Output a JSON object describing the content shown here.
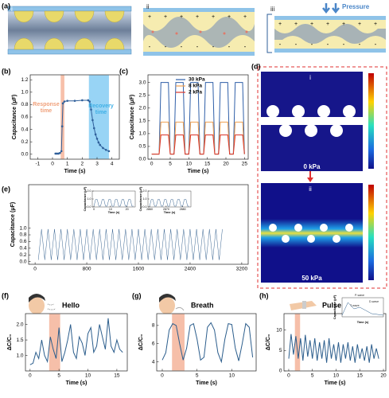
{
  "figure": {
    "panel_labels": [
      "(a)",
      "(b)",
      "(c)",
      "(d)",
      "(e)",
      "(f)",
      "(g)",
      "(h)"
    ],
    "a_labels": [
      "i",
      "ii",
      "iii"
    ],
    "pressure": "Pressure",
    "signs": {
      "plus": "+",
      "minus": "-"
    },
    "d_labels": [
      "i",
      "ii"
    ],
    "d_pressures": [
      "0 kPa",
      "50 kPa"
    ]
  },
  "chart_data": [
    {
      "type": "line",
      "xlabel": "Time (s)",
      "ylabel": "Capacitance (μF)",
      "xlim": [
        -1.5,
        4.5
      ],
      "ylim": [
        -0.08,
        1.28
      ],
      "xticks": [
        -1,
        0,
        1,
        2,
        3,
        4
      ],
      "yticks": [
        {
          "value": 0,
          "label": "0.0"
        },
        {
          "value": 0.2,
          "label": "0.2"
        },
        {
          "value": 0.4,
          "label": "0.4"
        },
        {
          "value": 0.6,
          "label": "0.6"
        },
        {
          "value": 0.8,
          "label": "0.8"
        },
        {
          "value": 1,
          "label": "1.0"
        },
        {
          "value": 1.2,
          "label": "1.2"
        }
      ],
      "x": [
        0.2,
        0.3,
        0.4,
        0.5,
        0.6,
        0.65,
        0.7,
        0.8,
        1.0,
        1.5,
        2.0,
        2.4,
        2.5,
        2.6,
        2.7,
        2.8,
        2.9,
        3.0,
        3.1,
        3.2,
        3.4,
        3.6,
        3.8
      ],
      "series": [
        {
          "color": "#2f5f9a",
          "values": [
            0.01,
            0.01,
            0.01,
            0.02,
            0.05,
            0.45,
            0.82,
            0.85,
            0.86,
            0.86,
            0.87,
            0.87,
            0.85,
            0.72,
            0.55,
            0.42,
            0.32,
            0.25,
            0.19,
            0.15,
            0.1,
            0.07,
            0.05
          ]
        }
      ],
      "markers": true,
      "highlights": [
        {
          "from": 0.55,
          "to": 0.8,
          "color": "#f6b59b"
        },
        {
          "from": 2.45,
          "to": 3.8,
          "color": "#86cdf3"
        }
      ],
      "annotations": [
        "Response time",
        "Recovery time"
      ],
      "annotation_colors": [
        "#f0a07a",
        "#3fb0e6"
      ]
    },
    {
      "type": "line",
      "xlabel": "Time (s)",
      "ylabel": "Capacitance (μF)",
      "xlim": [
        -1,
        26
      ],
      "ylim": [
        0,
        3.3
      ],
      "xticks": [
        0,
        5,
        10,
        15,
        20,
        25
      ],
      "yticks": [
        {
          "value": 0,
          "label": "0.0"
        },
        0.5,
        {
          "value": 1,
          "label": "1.0"
        },
        1.5,
        {
          "value": 2,
          "label": "2.0"
        },
        2.5,
        {
          "value": 3,
          "label": "3.0"
        }
      ],
      "x": [
        0,
        0.5,
        1,
        1.5,
        2,
        2.5,
        3,
        3.5,
        4,
        4.5,
        5,
        5.5,
        6,
        6.5,
        7,
        7.5,
        8,
        8.5,
        9,
        9.5,
        10,
        10.5,
        11,
        11.5,
        12,
        12.5,
        13,
        13.5,
        14,
        14.5,
        15,
        15.5,
        16,
        16.5,
        17,
        17.5,
        18,
        18.5,
        19,
        19.5,
        20,
        20.5,
        21,
        21.5,
        22,
        22.5,
        23,
        23.5,
        24,
        24.5,
        25
      ],
      "legend": "upper center",
      "series": [
        {
          "name": "30 kPa",
          "color": "#2f5fa8",
          "values": [
            0.2,
            0.2,
            0.2,
            0.2,
            0.2,
            3,
            3,
            3,
            3,
            3,
            0.2,
            0.2,
            0.2,
            3,
            3,
            3,
            3,
            3,
            0.2,
            0.2,
            0.2,
            3,
            3,
            3,
            3,
            3,
            0.2,
            0.2,
            0.2,
            3,
            3,
            3,
            3,
            3,
            0.2,
            0.2,
            0.2,
            3,
            3,
            3,
            3,
            3,
            0.2,
            0.2,
            0.2,
            3,
            3,
            3,
            3,
            3,
            0.2
          ]
        },
        {
          "name": "8 kPa",
          "color": "#f0a050",
          "values": [
            0.2,
            0.2,
            0.2,
            0.2,
            0.2,
            1.45,
            1.45,
            1.45,
            1.45,
            1.45,
            0.2,
            0.2,
            0.2,
            1.45,
            1.45,
            1.45,
            1.45,
            1.45,
            0.2,
            0.2,
            0.2,
            1.45,
            1.45,
            1.45,
            1.45,
            1.45,
            0.2,
            0.2,
            0.2,
            1.45,
            1.45,
            1.45,
            1.45,
            1.45,
            0.2,
            0.2,
            0.2,
            1.45,
            1.45,
            1.45,
            1.45,
            1.45,
            0.2,
            0.2,
            0.2,
            1.45,
            1.45,
            1.45,
            1.45,
            1.45,
            0.2
          ]
        },
        {
          "name": "2 kPa",
          "color": "#d9362b",
          "values": [
            0.2,
            0.2,
            0.2,
            0.2,
            0.2,
            0.95,
            0.95,
            0.95,
            0.95,
            0.95,
            0.2,
            0.2,
            0.2,
            0.95,
            0.95,
            0.95,
            0.95,
            0.95,
            0.2,
            0.2,
            0.2,
            0.95,
            0.95,
            0.95,
            0.95,
            0.95,
            0.2,
            0.2,
            0.2,
            0.95,
            0.95,
            0.95,
            0.95,
            0.95,
            0.2,
            0.2,
            0.2,
            0.95,
            0.95,
            0.95,
            0.95,
            0.95,
            0.2,
            0.2,
            0.2,
            0.95,
            0.95,
            0.95,
            0.95,
            0.95,
            0.2
          ]
        }
      ]
    },
    {
      "type": "line",
      "ylabel": "Capacitance (μF)",
      "xlim": [
        -100,
        3300
      ],
      "ylim": [
        -0.08,
        2.3
      ],
      "xticks": [
        0,
        800,
        1600,
        2400,
        3200
      ],
      "yticks": [
        {
          "value": 0,
          "label": "0.0"
        },
        {
          "value": 0.2,
          "label": "0.2"
        },
        {
          "value": 0.4,
          "label": "0.4"
        },
        {
          "value": 0.6,
          "label": "0.6"
        },
        {
          "value": 0.8,
          "label": "0.8"
        },
        {
          "value": 1,
          "label": "1.0"
        }
      ],
      "x": [
        50,
        100,
        150,
        200,
        250,
        300,
        350,
        400,
        450,
        500,
        550,
        600,
        650,
        700,
        750,
        800,
        850,
        900,
        950,
        1000,
        1050,
        1100,
        1150,
        1200,
        1250,
        1300,
        1350,
        1400,
        1450,
        1500,
        1550,
        1600,
        1650,
        1700,
        1750,
        1800,
        1850,
        1900,
        1950,
        2000,
        2050,
        2100,
        2150,
        2200,
        2250,
        2300,
        2350,
        2400,
        2450,
        2500,
        2550,
        2600,
        2650,
        2700,
        2750,
        2800,
        2850,
        2900
      ],
      "series": [
        {
          "color": "#3a6592",
          "values": [
            0.05,
            0.97,
            0.05,
            0.97,
            0.05,
            0.97,
            0.05,
            0.97,
            0.05,
            0.97,
            0.05,
            0.97,
            0.05,
            0.97,
            0.05,
            0.97,
            0.05,
            0.97,
            0.05,
            0.97,
            0.05,
            0.97,
            0.05,
            0.97,
            0.05,
            0.97,
            0.05,
            0.97,
            0.05,
            0.97,
            0.05,
            0.97,
            0.05,
            0.97,
            0.05,
            0.97,
            0.05,
            0.97,
            0.05,
            0.97,
            0.05,
            0.97,
            0.05,
            0.97,
            0.05,
            0.97,
            0.05,
            0.97,
            0.05,
            0.97,
            0.05,
            0.97,
            0.05,
            0.97,
            0.05,
            0.97,
            0.05,
            0.97
          ]
        }
      ]
    },
    {
      "type": "line",
      "xlabel": "Time (s)",
      "ylabel": "Capacitance (μF)",
      "xlim": [
        -1,
        25
      ],
      "ylim": [
        0,
        2
      ],
      "xticks": [
        0,
        10,
        20
      ],
      "yticks": [
        {
          "value": 0,
          "label": "0.0"
        },
        {
          "value": 1,
          "label": "1.0"
        },
        {
          "value": 2,
          "label": "2.0"
        }
      ],
      "x": [
        0,
        1,
        2,
        3,
        4,
        5,
        6,
        7,
        8,
        9,
        10,
        11,
        12,
        13,
        14,
        15,
        16,
        17,
        18,
        19,
        20,
        21,
        22,
        23,
        24
      ],
      "series": [
        {
          "color": "#3a6592",
          "values": [
            0.1,
            0.95,
            0.95,
            0.1,
            0.1,
            0.95,
            0.95,
            0.1,
            0.1,
            0.95,
            0.95,
            0.1,
            0.1,
            0.95,
            0.95,
            0.1,
            0.1,
            0.95,
            0.95,
            0.1,
            0.1,
            0.95,
            0.95,
            0.1,
            0.1
          ]
        }
      ]
    },
    {
      "type": "line",
      "xlabel": "Time (s)",
      "ylabel": "Capacitance (μF)",
      "xlim": [
        2859,
        2885
      ],
      "ylim": [
        0,
        2
      ],
      "xticks": [
        2860,
        2870,
        2880
      ],
      "yticks": [
        {
          "value": 0,
          "label": "0.0"
        },
        {
          "value": 1,
          "label": "1.0"
        },
        {
          "value": 2,
          "label": "2.0"
        }
      ],
      "x": [
        2860,
        2861,
        2862,
        2863,
        2864,
        2865,
        2866,
        2867,
        2868,
        2869,
        2870,
        2871,
        2872,
        2873,
        2874,
        2875,
        2876,
        2877,
        2878,
        2879,
        2880,
        2881,
        2882,
        2883,
        2884
      ],
      "series": [
        {
          "color": "#3a6592",
          "values": [
            0.1,
            0.95,
            0.95,
            0.1,
            0.1,
            0.95,
            0.95,
            0.1,
            0.1,
            0.95,
            0.95,
            0.1,
            0.1,
            0.95,
            0.95,
            0.1,
            0.1,
            0.95,
            0.95,
            0.1,
            0.1,
            0.95,
            0.95,
            0.1,
            0.1
          ]
        }
      ]
    },
    {
      "type": "line",
      "title": "Hello",
      "xlabel": "Time (s)",
      "ylabel": "ΔC/C₀",
      "xlim": [
        -0.8,
        16.8
      ],
      "ylim": [
        0.5,
        2.35
      ],
      "xticks": [
        0,
        5,
        10,
        15
      ],
      "yticks": [
        {
          "value": 1,
          "label": "1.0"
        },
        1.5,
        {
          "value": 2,
          "label": "2.0"
        }
      ],
      "x": [
        0,
        0.5,
        1,
        1.5,
        2,
        2.5,
        3,
        3.5,
        4,
        4.5,
        5,
        5.5,
        6,
        6.5,
        7,
        7.5,
        8,
        8.5,
        9,
        9.5,
        10,
        10.5,
        11,
        11.5,
        12,
        12.5,
        13,
        13.5,
        14,
        14.5,
        15,
        15.5,
        16
      ],
      "highlights": [
        {
          "from": 3.3,
          "to": 5.2,
          "color": "#f4b49a"
        }
      ],
      "series": [
        {
          "color": "#2b5d8c",
          "values": [
            0.7,
            0.75,
            1.1,
            0.9,
            1.5,
            1.0,
            0.8,
            1.6,
            1.2,
            0.9,
            1.9,
            0.8,
            1.1,
            1.5,
            2.0,
            1.1,
            0.9,
            1.6,
            1.4,
            1.0,
            1.7,
            1.9,
            1.1,
            1.3,
            2.0,
            1.6,
            1.2,
            2.2,
            1.3,
            1.1,
            1.5,
            1.2,
            1.1
          ]
        }
      ]
    },
    {
      "type": "line",
      "title": "Breath",
      "xlabel": "Time (s)",
      "ylabel": "ΔC/C₀",
      "xlim": [
        -0.8,
        13.5
      ],
      "ylim": [
        3,
        9.3
      ],
      "xticks": [
        0,
        5,
        10
      ],
      "yticks": [
        4,
        6,
        8
      ],
      "x": [
        0,
        0.5,
        1,
        1.5,
        2,
        2.5,
        3,
        3.5,
        4,
        4.5,
        5,
        5.5,
        6,
        6.5,
        7,
        7.5,
        8,
        8.5,
        9,
        9.5,
        10,
        10.5,
        11,
        11.5,
        12,
        12.5,
        13
      ],
      "highlights": [
        {
          "from": 1.4,
          "to": 3.2,
          "color": "#f4b49a"
        }
      ],
      "series": [
        {
          "color": "#2b5d8c",
          "values": [
            4.2,
            5,
            7.5,
            8.2,
            8.0,
            6,
            4.2,
            5.5,
            8.0,
            8.2,
            6.5,
            4.2,
            4.5,
            7.8,
            8.3,
            7.5,
            5,
            4.0,
            6.5,
            8.2,
            8.1,
            5.5,
            4.1,
            6,
            8.2,
            7.8,
            4.5
          ]
        }
      ]
    },
    {
      "type": "line",
      "title": "Pulse",
      "xlabel": "Time (s)",
      "ylabel": "ΔC/C₀",
      "xlim": [
        -1,
        20.5
      ],
      "ylim": [
        0,
        14
      ],
      "xticks": [
        0,
        5,
        10,
        15,
        20
      ],
      "yticks": [
        0,
        5,
        10
      ],
      "x": [
        0,
        0.5,
        1,
        1.5,
        2,
        2.5,
        3,
        3.5,
        4,
        4.5,
        5,
        5.5,
        6,
        6.5,
        7,
        7.5,
        8,
        8.5,
        9,
        9.5,
        10,
        10.5,
        11,
        11.5,
        12,
        12.5,
        13,
        13.5,
        14,
        14.5,
        15,
        15.5,
        16,
        16.5,
        17,
        17.5,
        18,
        18.5,
        19
      ],
      "highlights": [
        {
          "from": 1.3,
          "to": 2.4,
          "color": "#f4b49a"
        }
      ],
      "series": [
        {
          "color": "#2b5d8c",
          "values": [
            3,
            9,
            4,
            8.5,
            3,
            8,
            2.5,
            8.8,
            3.5,
            7.5,
            3,
            8,
            2.5,
            7,
            3,
            7.5,
            2,
            8,
            3,
            6.5,
            2.5,
            7,
            2,
            6.5,
            3,
            7,
            2.5,
            6,
            2,
            6.5,
            3,
            5.5,
            2.5,
            6,
            2,
            6.5,
            3,
            5.5,
            3
          ]
        }
      ]
    },
    {
      "type": "line",
      "xlabel": "Time (s)",
      "ylabel": "Capacitance (pF)",
      "xlim": [
        0,
        1.4
      ],
      "ylim": [
        0,
        1.2
      ],
      "x": [
        0,
        0.2,
        0.4,
        0.6,
        0.8,
        1.0,
        1.2,
        1.4
      ],
      "series": [
        {
          "color": "#2b5d8c",
          "values": [
            0.1,
            0.9,
            0.5,
            0.6,
            0.4,
            0.2,
            0.15,
            0.1
          ]
        }
      ],
      "annotations": [
        "P-wave",
        "D-wave",
        "T-wave"
      ]
    }
  ]
}
